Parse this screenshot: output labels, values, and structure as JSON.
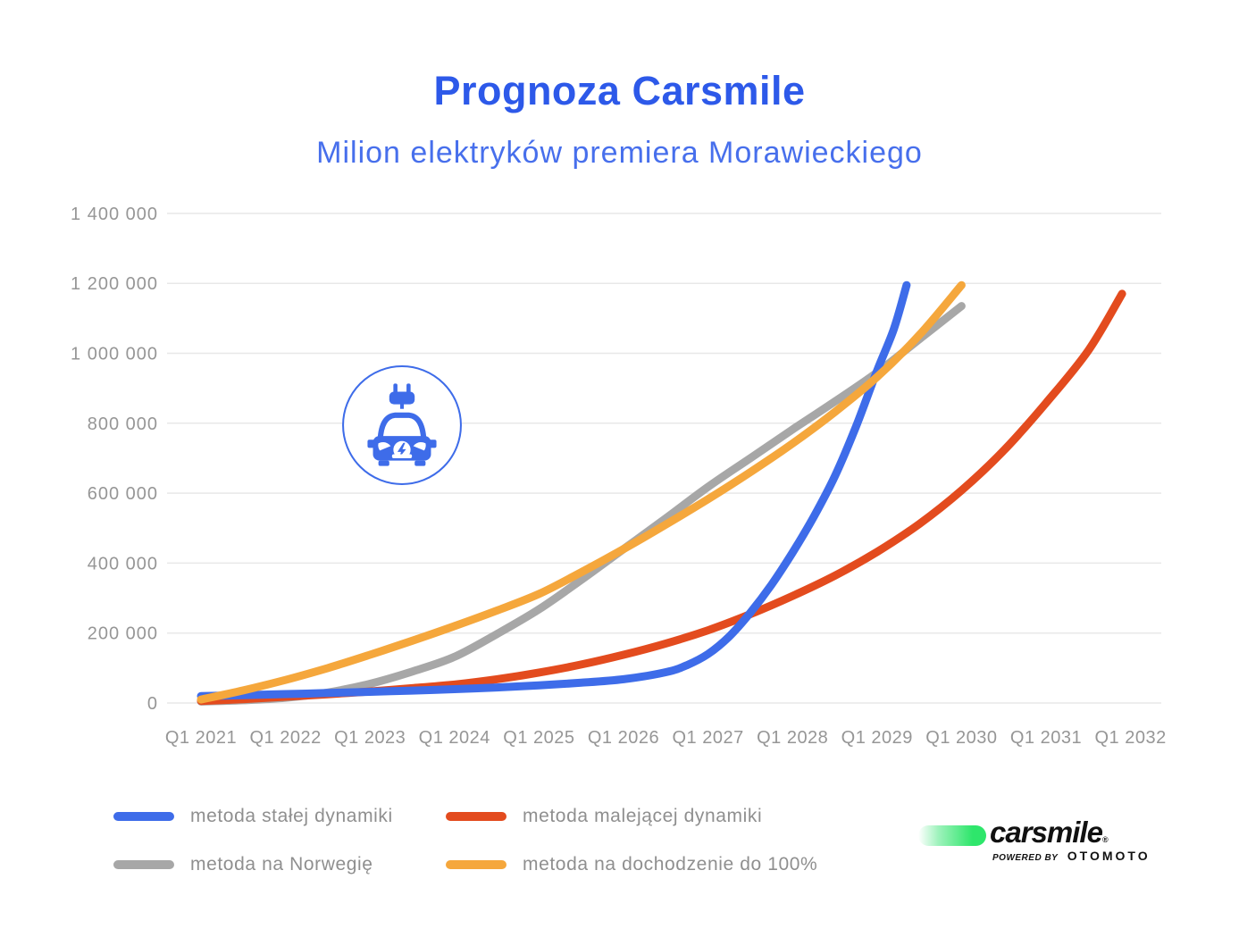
{
  "theme": {
    "title_color": "#2d59e9",
    "subtitle_color": "#476fec",
    "grid_color": "#e8e8e8",
    "axis_label_color": "#969696",
    "legend_text_color": "#8f8f8f"
  },
  "icon": {
    "name": "electric-car-icon",
    "color": "#3e6ce9"
  },
  "branding": {
    "logo_text": "carsmile",
    "mark": "®",
    "powered_by": "POWERED BY",
    "partner": "OTOMOTO",
    "logo_green": "#2ee66b"
  },
  "chart_data": {
    "type": "line",
    "title": "Prognoza Carsmile",
    "subtitle": "Milion elektryków premiera Morawieckiego",
    "xlabel": "",
    "ylabel": "",
    "ylim": [
      0,
      1400000
    ],
    "grid": "horizontal-only",
    "legend_position": "bottom-left",
    "x_ticks": [
      "Q1 2021",
      "Q1 2022",
      "Q1 2023",
      "Q1 2024",
      "Q1 2025",
      "Q1 2026",
      "Q1 2027",
      "Q1 2028",
      "Q1 2029",
      "Q1 2030",
      "Q1 2031",
      "Q1 2032"
    ],
    "y_ticks": [
      {
        "value": 0,
        "label": "0"
      },
      {
        "value": 200000,
        "label": "200 000"
      },
      {
        "value": 400000,
        "label": "400 000"
      },
      {
        "value": 600000,
        "label": "600 000"
      },
      {
        "value": 800000,
        "label": "800 000"
      },
      {
        "value": 1000000,
        "label": "1 000 000"
      },
      {
        "value": 1200000,
        "label": "1 200 000"
      },
      {
        "value": 1400000,
        "label": "1 400 000"
      }
    ],
    "series": [
      {
        "name": "metoda stałej dynamiki",
        "color": "#3e6ce9",
        "points": [
          [
            2021,
            20000
          ],
          [
            2021.5,
            22500
          ],
          [
            2022,
            25500
          ],
          [
            2022.5,
            28500
          ],
          [
            2023,
            32000
          ],
          [
            2023.5,
            35500
          ],
          [
            2024,
            39500
          ],
          [
            2024.5,
            44500
          ],
          [
            2025,
            50500
          ],
          [
            2025.5,
            58000
          ],
          [
            2026,
            68000
          ],
          [
            2026.5,
            88000
          ],
          [
            2026.75,
            108000
          ],
          [
            2027,
            140000
          ],
          [
            2027.25,
            190000
          ],
          [
            2027.5,
            258000
          ],
          [
            2027.75,
            338000
          ],
          [
            2028,
            430000
          ],
          [
            2028.25,
            532000
          ],
          [
            2028.5,
            648000
          ],
          [
            2028.75,
            790000
          ],
          [
            2029,
            950000
          ],
          [
            2029.2,
            1070000
          ],
          [
            2029.35,
            1195000
          ]
        ]
      },
      {
        "name": "metoda malejącej dynamiki",
        "color": "#e34b1e",
        "points": [
          [
            2021,
            6000
          ],
          [
            2021.5,
            11000
          ],
          [
            2022,
            18000
          ],
          [
            2022.5,
            25000
          ],
          [
            2023,
            33000
          ],
          [
            2023.5,
            42500
          ],
          [
            2024,
            53000
          ],
          [
            2024.5,
            68000
          ],
          [
            2025,
            87000
          ],
          [
            2025.5,
            110000
          ],
          [
            2026,
            138000
          ],
          [
            2026.5,
            170000
          ],
          [
            2027,
            208000
          ],
          [
            2027.5,
            254000
          ],
          [
            2028,
            306000
          ],
          [
            2028.5,
            364000
          ],
          [
            2029,
            432000
          ],
          [
            2029.5,
            512000
          ],
          [
            2030,
            608000
          ],
          [
            2030.5,
            722000
          ],
          [
            2031,
            858000
          ],
          [
            2031.5,
            1008000
          ],
          [
            2031.9,
            1170000
          ]
        ]
      },
      {
        "name": "metoda na Norwegię",
        "color": "#a7a7a7",
        "points": [
          [
            2021,
            4000
          ],
          [
            2021.5,
            8000
          ],
          [
            2022,
            15000
          ],
          [
            2022.5,
            30000
          ],
          [
            2023,
            55000
          ],
          [
            2023.5,
            90000
          ],
          [
            2024,
            132000
          ],
          [
            2024.5,
            197000
          ],
          [
            2025,
            268000
          ],
          [
            2025.5,
            352000
          ],
          [
            2026,
            440000
          ],
          [
            2026.5,
            528000
          ],
          [
            2027,
            618000
          ],
          [
            2027.5,
            700000
          ],
          [
            2028,
            782000
          ],
          [
            2028.5,
            862000
          ],
          [
            2029,
            945000
          ],
          [
            2029.5,
            1040000
          ],
          [
            2030,
            1135000
          ]
        ]
      },
      {
        "name": "metoda na dochodzenie do 100%",
        "color": "#f5a73c",
        "points": [
          [
            2021,
            10000
          ],
          [
            2021.5,
            36000
          ],
          [
            2022,
            66000
          ],
          [
            2022.5,
            100000
          ],
          [
            2023,
            138000
          ],
          [
            2023.5,
            178000
          ],
          [
            2024,
            220000
          ],
          [
            2024.5,
            264000
          ],
          [
            2025,
            312000
          ],
          [
            2025.5,
            374000
          ],
          [
            2026,
            440000
          ],
          [
            2026.5,
            510000
          ],
          [
            2027,
            583000
          ],
          [
            2027.5,
            660000
          ],
          [
            2028,
            742000
          ],
          [
            2028.5,
            832000
          ],
          [
            2029,
            932000
          ],
          [
            2029.5,
            1052000
          ],
          [
            2030,
            1195000
          ]
        ]
      }
    ]
  }
}
